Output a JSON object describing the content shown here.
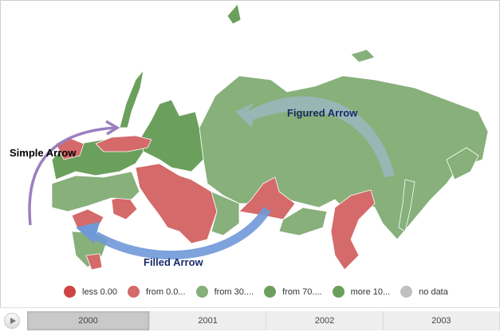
{
  "colors": {
    "less": "#cc4444",
    "from0": "#d46a6a",
    "from30": "#87b07a",
    "from70": "#6aa05c",
    "more": "#6aa05c",
    "nodata": "#c0c0c0"
  },
  "legend": [
    {
      "label": "less 0.00",
      "color": "#cc4444"
    },
    {
      "label": "from 0.0...",
      "color": "#d46a6a"
    },
    {
      "label": "from 30....",
      "color": "#87b07a"
    },
    {
      "label": "from 70....",
      "color": "#6aa05c"
    },
    {
      "label": "more 10...",
      "color": "#6aa05c"
    },
    {
      "label": "no data",
      "color": "#c0c0c0"
    }
  ],
  "annotations": {
    "simple": "Simple Arrow",
    "figured": "Figured Arrow",
    "filled": "Filled Arrow"
  },
  "timeline": {
    "play_icon": "play-icon",
    "years": [
      "2000",
      "2001",
      "2002",
      "2003"
    ],
    "selected": "2000"
  }
}
